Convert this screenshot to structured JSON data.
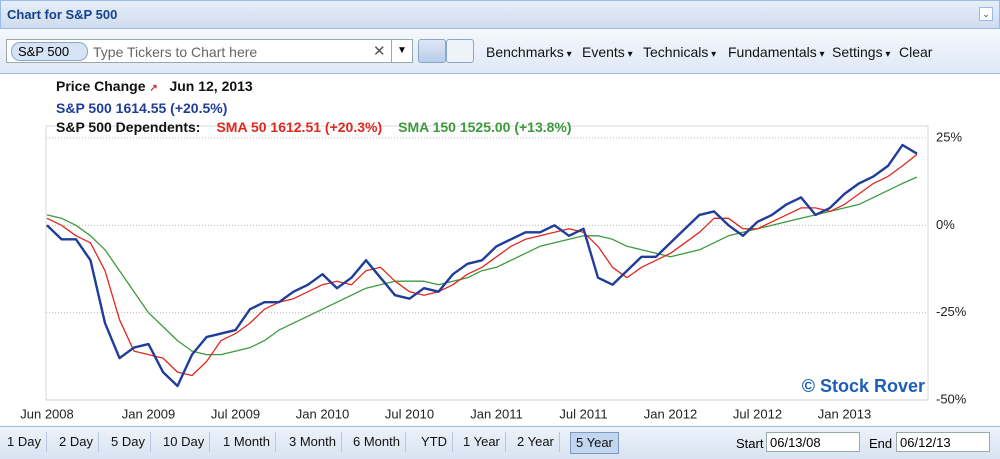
{
  "header": {
    "title": "Chart for S&P 500"
  },
  "toolbar": {
    "ticker": "S&P 500",
    "placeholder": "Type Tickers to Chart here",
    "menus": [
      "Benchmarks",
      "Events",
      "Technicals",
      "Fundamentals",
      "Settings"
    ],
    "clear": "Clear"
  },
  "chart_data": {
    "type": "line",
    "title": "Price Change",
    "subtitle": "Jun 12, 2013",
    "dependents_label": "S&P 500 Dependents:",
    "annotation": "© Stock Rover",
    "categories": [
      "Jun 2008",
      null,
      null,
      null,
      null,
      null,
      null,
      "Jan 2009",
      null,
      null,
      null,
      null,
      null,
      "Jul 2009",
      null,
      null,
      null,
      null,
      null,
      "Jan 2010",
      null,
      null,
      null,
      null,
      null,
      "Jul 2010",
      null,
      null,
      null,
      null,
      null,
      "Jan 2011",
      null,
      null,
      null,
      null,
      null,
      "Jul 2011",
      null,
      null,
      null,
      null,
      null,
      "Jan 2012",
      null,
      null,
      null,
      null,
      null,
      "Jul 2012",
      null,
      null,
      null,
      null,
      null,
      "Jan 2013",
      null,
      null,
      null,
      null,
      null
    ],
    "series": [
      {
        "name": "S&P 500 1614.55 (+20.5%)",
        "color": "#1f3d99",
        "values": [
          0,
          -4,
          -4,
          -10,
          -28,
          -38,
          -35,
          -34,
          -42,
          -46,
          -37,
          -32,
          -31,
          -30,
          -24,
          -22,
          -22,
          -19,
          -17,
          -14,
          -18,
          -15,
          -10,
          -15,
          -20,
          -21,
          -18,
          -19,
          -14,
          -11,
          -10,
          -6,
          -4,
          -2,
          -2,
          0,
          -3,
          -1,
          -15,
          -17,
          -13,
          -9,
          -9,
          -5,
          -1,
          3,
          4,
          0,
          -3,
          1,
          3,
          6,
          8,
          3,
          5,
          9,
          12,
          14,
          17,
          23,
          20.5
        ]
      },
      {
        "name": "SMA 50 1612.51 (+20.3%)",
        "color": "#e0281e",
        "values": [
          2,
          0,
          -3,
          -5,
          -13,
          -27,
          -36,
          -37,
          -38,
          -42,
          -43,
          -39,
          -33,
          -31,
          -28,
          -24,
          -22,
          -21,
          -19,
          -17,
          -16,
          -17,
          -13,
          -12,
          -16,
          -19,
          -20,
          -19,
          -17,
          -14,
          -12,
          -9,
          -6,
          -4,
          -3,
          -2,
          -1,
          -2,
          -6,
          -12,
          -15,
          -12,
          -10,
          -8,
          -5,
          -2,
          2,
          2,
          -1,
          -1,
          1,
          3,
          5,
          5,
          4,
          6,
          9,
          12,
          14,
          17,
          20.3
        ]
      },
      {
        "name": "SMA 150 1525.00 (+13.8%)",
        "color": "#3d9a3d",
        "values": [
          3,
          2,
          0,
          -3,
          -7,
          -13,
          -19,
          -25,
          -29,
          -33,
          -36,
          -37,
          -37,
          -36,
          -35,
          -33,
          -30,
          -28,
          -26,
          -24,
          -22,
          -20,
          -18,
          -17,
          -16,
          -16,
          -16,
          -17,
          -16,
          -15,
          -13,
          -12,
          -10,
          -8,
          -6,
          -5,
          -4,
          -3,
          -3,
          -4,
          -6,
          -7,
          -8,
          -9,
          -8,
          -7,
          -5,
          -3,
          -2,
          -1,
          0,
          1,
          2,
          3,
          4,
          5,
          6,
          8,
          10,
          12,
          13.8
        ]
      }
    ],
    "ylim": [
      -50,
      25
    ],
    "yticks": [
      {
        "value": -50,
        "label": "-50%"
      },
      {
        "value": -25,
        "label": "-25%"
      },
      {
        "value": 0,
        "label": "0%"
      },
      {
        "value": 25,
        "label": "25%"
      }
    ],
    "grid": true
  },
  "footer": {
    "periods": [
      "1 Day",
      "2 Day",
      "5 Day",
      "10 Day",
      "1 Month",
      "3 Month",
      "6 Month",
      "YTD",
      "1 Year",
      "2 Year",
      "5 Year"
    ],
    "start_label": "Start",
    "start_date": "06/13/08",
    "end_label": "End",
    "end_date": "06/12/13"
  }
}
